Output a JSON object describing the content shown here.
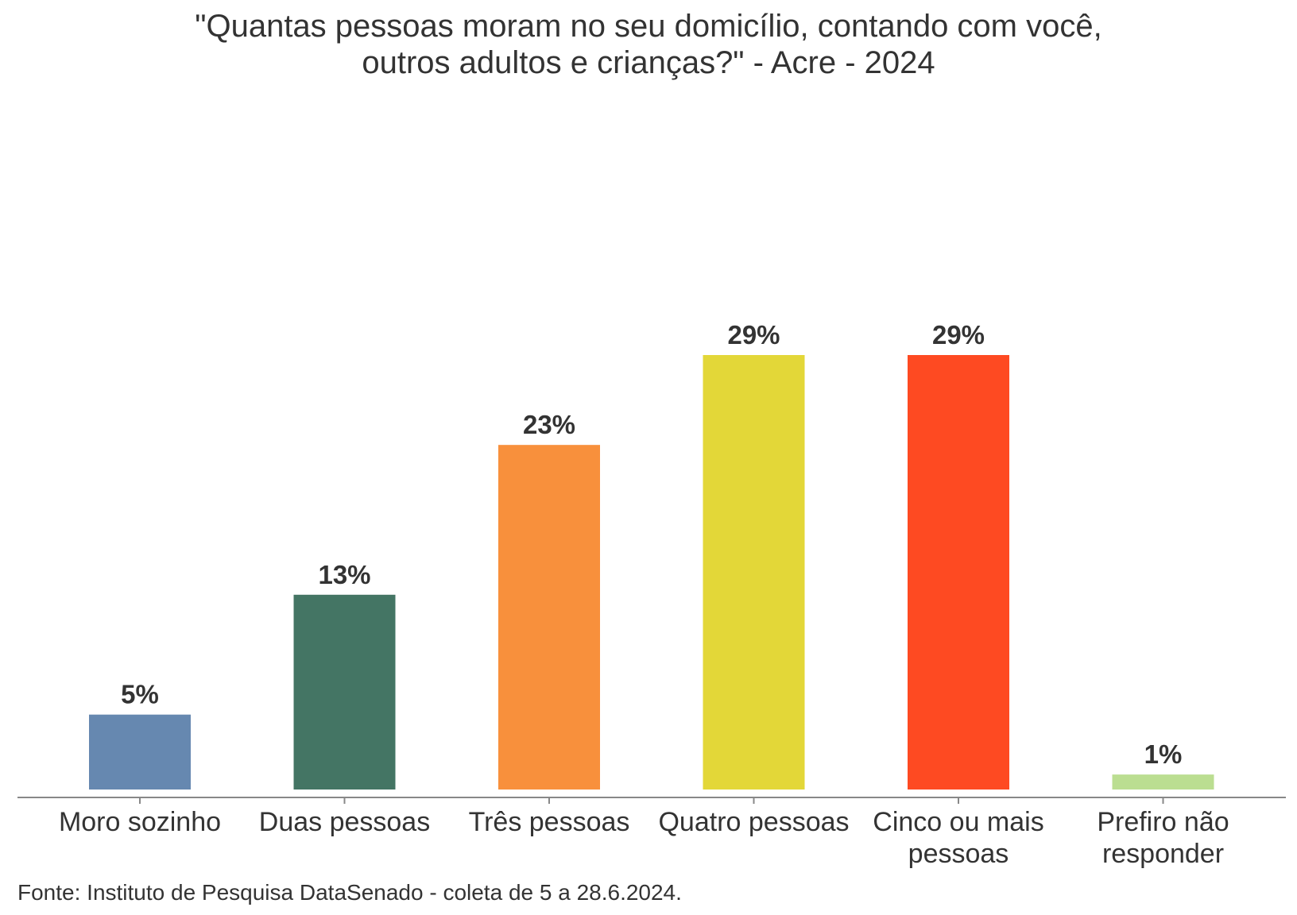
{
  "chart": {
    "title_line1": "\"Quantas pessoas moram no seu domicílio, contando com você,",
    "title_line2": "outros adultos e crianças?\" - Acre - 2024"
  },
  "source": "Fonte: Instituto de Pesquisa DataSenado - coleta de 5 a 28.6.2024.",
  "chart_data": {
    "type": "bar",
    "title": "\"Quantas pessoas moram no seu domicílio, contando com você, outros adultos e crianças?\" - Acre - 2024",
    "categories": [
      [
        "Moro sozinho"
      ],
      [
        "Duas pessoas"
      ],
      [
        "Três pessoas"
      ],
      [
        "Quatro pessoas"
      ],
      [
        "Cinco ou mais",
        "pessoas"
      ],
      [
        "Prefiro não",
        "responder"
      ]
    ],
    "values": [
      5,
      13,
      23,
      29,
      29,
      1
    ],
    "data_labels": [
      "5%",
      "13%",
      "23%",
      "29%",
      "29%",
      "1%"
    ],
    "colors": [
      "#6688b0",
      "#447564",
      "#f8903c",
      "#e3d738",
      "#fe4a22",
      "#bbde91"
    ],
    "xlabel": "",
    "ylabel": "",
    "ylim": [
      0,
      29
    ],
    "grid": false,
    "legend": "none",
    "axis_color": "#888888",
    "label_color": "#333333"
  }
}
